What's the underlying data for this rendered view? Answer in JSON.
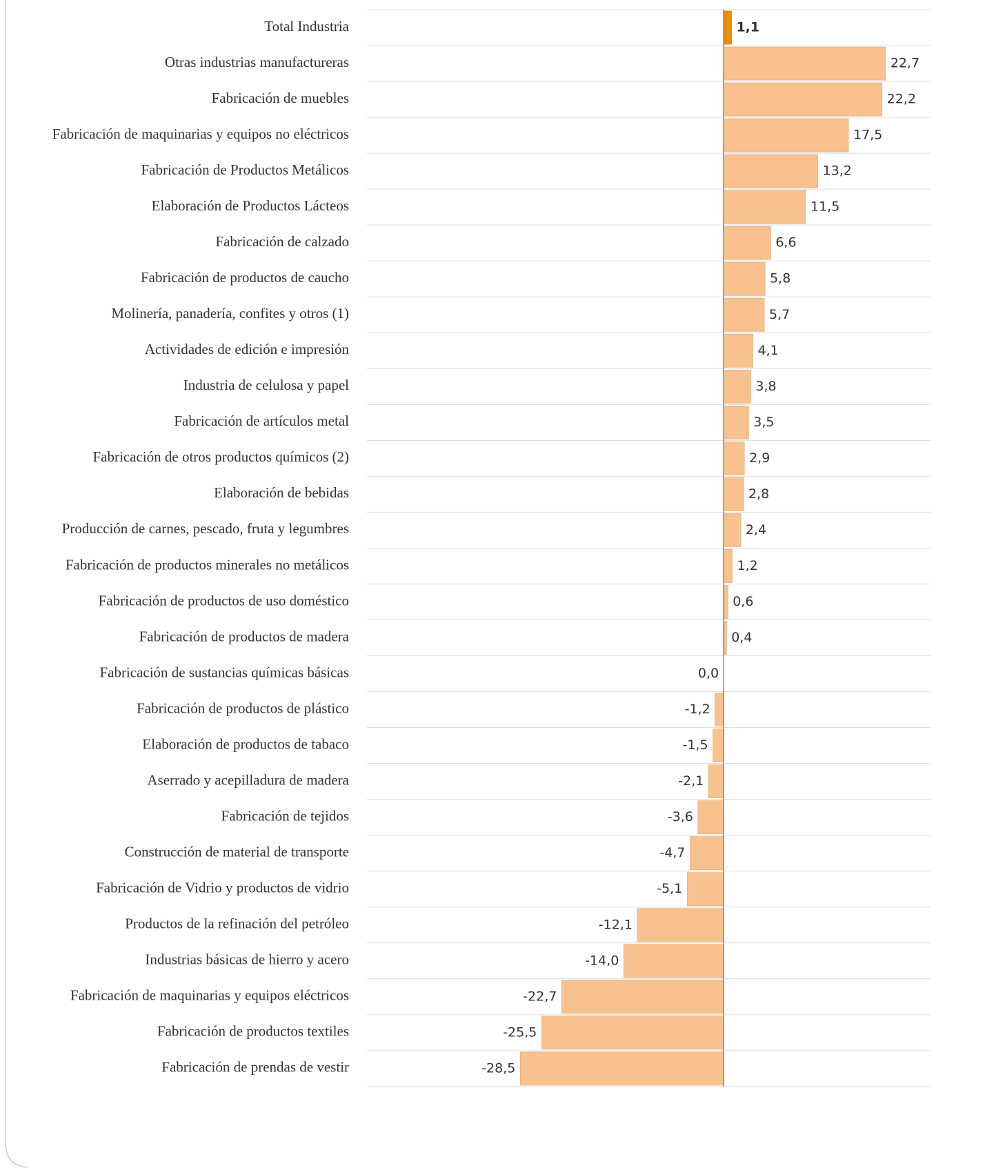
{
  "chart_data": {
    "type": "bar",
    "orientation": "horizontal",
    "categories": [
      "Total Industria",
      "Otras industrias manufactureras",
      "Fabricación de  muebles",
      "Fabricación de maquinarias y equipos no eléctricos",
      "Fabricación de Productos Metálicos",
      "Elaboración de Productos Lácteos",
      "Fabricación de calzado",
      "Fabricación de productos de caucho",
      "Molinería, panadería, confites y otros (1)",
      "Actividades de edición e impresión",
      "Industria de celulosa y papel",
      "Fabricación de artículos metal",
      "Fabricación de otros productos químicos (2)",
      "Elaboración de bebidas",
      "Producción de carnes, pescado, fruta y legumbres",
      "Fabricación de productos minerales no metálicos",
      "Fabricación de productos de uso doméstico",
      "Fabricación de productos de madera",
      "Fabricación de sustancias químicas básicas",
      "Fabricación de productos de plástico",
      "Elaboración de productos de tabaco",
      "Aserrado y acepilladura de madera",
      "Fabricación de tejidos",
      "Construcción de material de transporte",
      "Fabricación de Vidrio y productos de vidrio",
      "Productos de la refinación del petróleo",
      "Industrias básicas de hierro y acero",
      "Fabricación de maquinarias y equipos eléctricos",
      "Fabricación de productos textiles",
      "Fabricación de prendas de vestir"
    ],
    "values": [
      1.1,
      22.7,
      22.2,
      17.5,
      13.2,
      11.5,
      6.6,
      5.8,
      5.7,
      4.1,
      3.8,
      3.5,
      2.9,
      2.8,
      2.4,
      1.2,
      0.6,
      0.4,
      0.0,
      -1.2,
      -1.5,
      -2.1,
      -3.6,
      -4.7,
      -5.1,
      -12.1,
      -14.0,
      -22.7,
      -25.5,
      -28.5
    ],
    "value_labels": [
      "1,1",
      "22,7",
      "22,2",
      "17,5",
      "13,2",
      "11,5",
      "6,6",
      "5,8",
      "5,7",
      "4,1",
      "3,8",
      "3,5",
      "2,9",
      "2,8",
      "2,4",
      "1,2",
      "0,6",
      "0,4",
      "0,0",
      "-1,2",
      "-1,5",
      "-2,1",
      "-3,6",
      "-4,7",
      "-5,1",
      "-12,1",
      "-14,0",
      "-22,7",
      "-25,5",
      "-28,5"
    ],
    "colors": [
      "#ef8c0c",
      "#f8c28f",
      "#f8c28f",
      "#f8c28f",
      "#f8c28f",
      "#f8c28f",
      "#f8c28f",
      "#f8c28f",
      "#f8c28f",
      "#f8c28f",
      "#f8c28f",
      "#f8c28f",
      "#f8c28f",
      "#f8c28f",
      "#f8c28f",
      "#f8c28f",
      "#f8c28f",
      "#f8c28f",
      "#f8c28f",
      "#f8c28f",
      "#f8c28f",
      "#f8c28f",
      "#f8c28f",
      "#f8c28f",
      "#f8c28f",
      "#f8c28f",
      "#f8c28f",
      "#f8c28f",
      "#f8c28f",
      "#f8c28f"
    ],
    "xlim": [
      -50,
      29
    ]
  }
}
